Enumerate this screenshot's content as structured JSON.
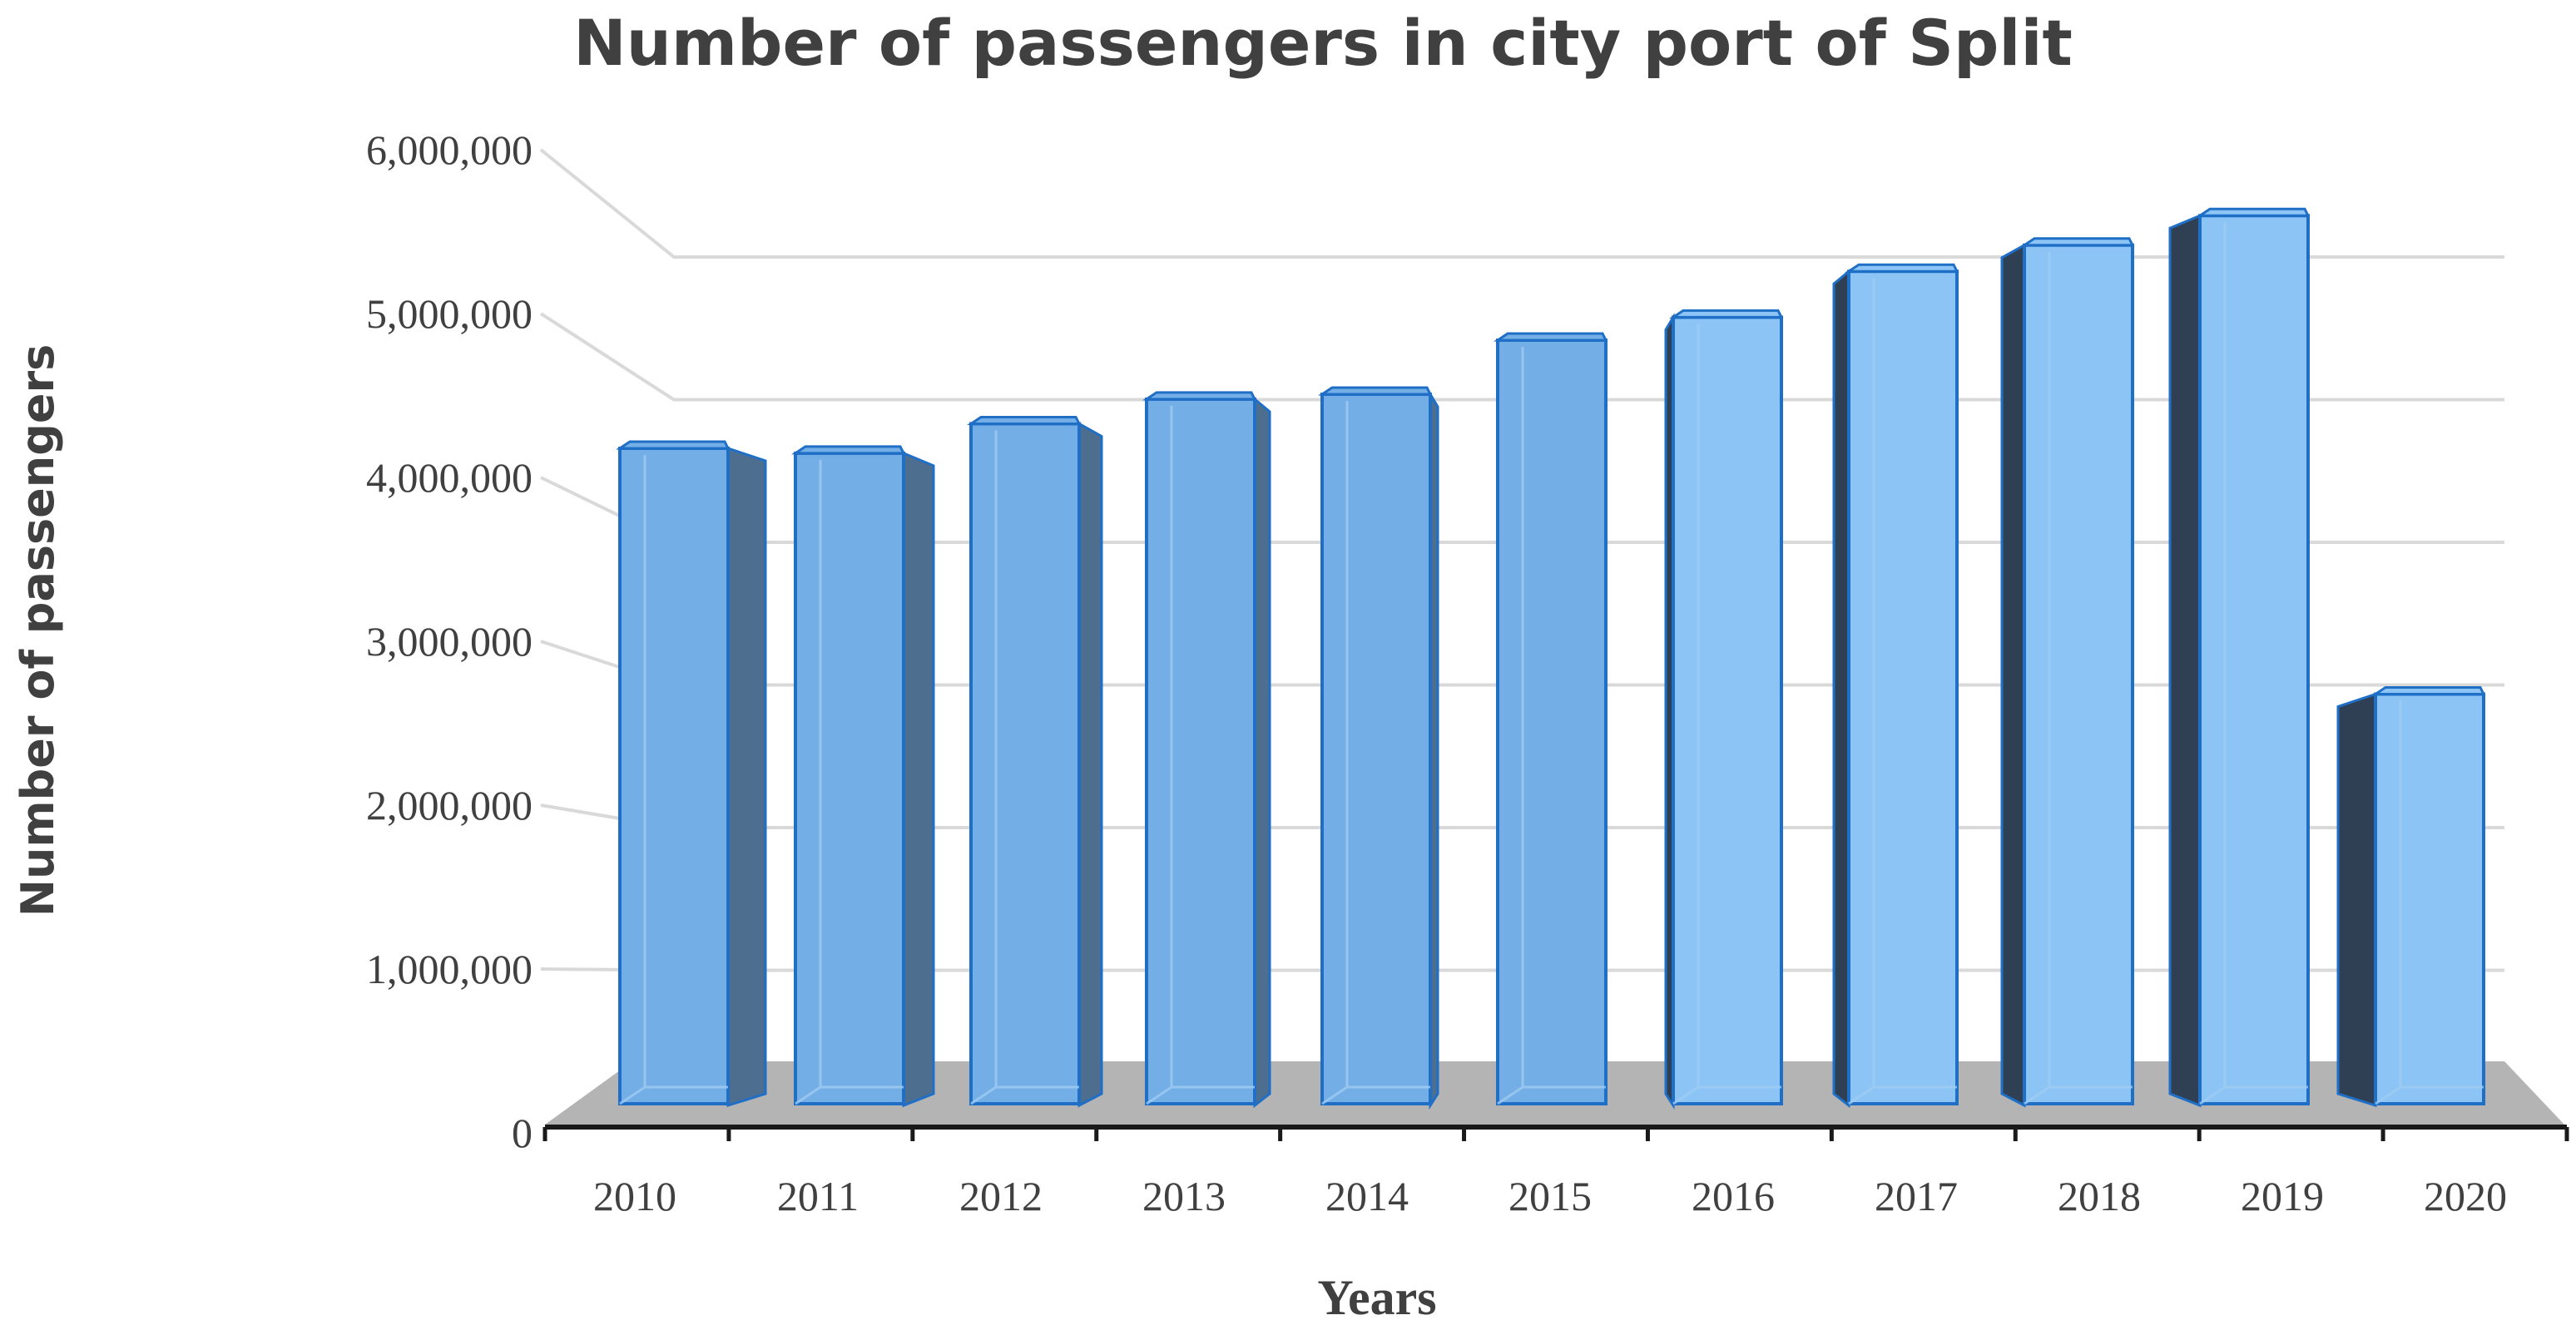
{
  "chart_data": {
    "type": "bar",
    "style": "3d-column",
    "title": "Number of passengers in city port of Split",
    "xlabel": "Years",
    "ylabel": "Number of passengers",
    "categories": [
      "2010",
      "2011",
      "2012",
      "2013",
      "2014",
      "2015",
      "2016",
      "2017",
      "2018",
      "2019",
      "2020"
    ],
    "series": [
      {
        "name": "Number of passengers",
        "values": [
          4000000,
          3970000,
          4150000,
          4300000,
          4330000,
          4660000,
          4800000,
          5080000,
          5240000,
          5420000,
          2500000
        ]
      }
    ],
    "ylim": [
      0,
      6000000
    ],
    "yticks": [
      0,
      1000000,
      2000000,
      3000000,
      4000000,
      5000000,
      6000000
    ],
    "ytick_labels": [
      "0",
      "1,000,000",
      "2,000,000",
      "3,000,000",
      "4,000,000",
      "5,000,000",
      "6,000,000"
    ],
    "grid": true,
    "legend": "none",
    "colors": {
      "bar_front": "#74aee6",
      "bar_front_light": "#8cc5f5",
      "bar_side": "#4d6e8f",
      "bar_side_dark": "#2f4055",
      "bar_edge": "#1f6fc7",
      "floor": "#b4b4b4",
      "grid": "#d9d9d9",
      "axis": "#1a1a1a",
      "text": "#404040"
    }
  }
}
